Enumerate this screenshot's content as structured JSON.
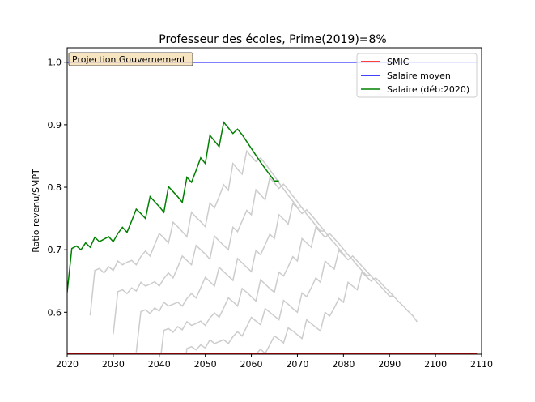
{
  "chart_data": {
    "type": "line",
    "title": "Professeur des écoles, Prime(2019)=8%",
    "xlabel": "",
    "ylabel": "Ratio revenu/SMPT",
    "xlim": [
      2020,
      2110
    ],
    "ylim": [
      0.533,
      1.023
    ],
    "xticks": [
      2020,
      2030,
      2040,
      2050,
      2060,
      2070,
      2080,
      2090,
      2100,
      2110
    ],
    "yticks": [
      0.6,
      0.7,
      0.8,
      0.9,
      1.0
    ],
    "grid": false,
    "legend_position": "top-right",
    "annotation": "Projection Gouvernement",
    "colors": {
      "smic": "#ff0000",
      "salaire_moyen": "#0000ff",
      "salaire_deb2020": "#008000",
      "other_careers": "#cccccc"
    },
    "series": [
      {
        "name": "SMIC",
        "x": [
          2020,
          2109
        ],
        "y": [
          0.534,
          0.534
        ]
      },
      {
        "name": "Salaire moyen",
        "x": [
          2020,
          2109
        ],
        "y": [
          1.0,
          1.0
        ]
      },
      {
        "name": "Salaire (déb:2020)",
        "x": [
          2020,
          2021,
          2022,
          2023,
          2024,
          2025,
          2026,
          2027,
          2028,
          2029,
          2030,
          2031,
          2032,
          2033,
          2034,
          2035,
          2036,
          2037,
          2038,
          2039,
          2040,
          2041,
          2042,
          2043,
          2044,
          2045,
          2046,
          2047,
          2048,
          2049,
          2050,
          2051,
          2052,
          2053,
          2054,
          2055,
          2056,
          2057,
          2058,
          2059,
          2060,
          2061,
          2062,
          2063,
          2064,
          2065,
          2066
        ],
        "y": [
          0.632,
          0.702,
          0.706,
          0.7,
          0.711,
          0.704,
          0.72,
          0.713,
          0.717,
          0.721,
          0.713,
          0.726,
          0.736,
          0.728,
          0.746,
          0.765,
          0.758,
          0.75,
          0.785,
          0.777,
          0.769,
          0.76,
          0.801,
          0.793,
          0.785,
          0.776,
          0.816,
          0.808,
          0.827,
          0.847,
          0.838,
          0.883,
          0.874,
          0.865,
          0.904,
          0.895,
          0.886,
          0.893,
          0.884,
          0.873,
          0.862,
          0.851,
          0.84,
          0.83,
          0.82,
          0.81,
          0.81
        ]
      }
    ],
    "background_careers": [
      {
        "start": 2025,
        "x": [
          2025,
          2026,
          2027,
          2028,
          2029,
          2030,
          2031,
          2032,
          2033,
          2034,
          2035,
          2036,
          2037,
          2038,
          2039,
          2040,
          2041,
          2042,
          2043,
          2044,
          2045,
          2046,
          2047,
          2048,
          2049,
          2050,
          2051,
          2052,
          2053,
          2054,
          2055,
          2056,
          2057,
          2058,
          2059,
          2060,
          2061,
          2062,
          2063,
          2064,
          2065,
          2066,
          2067,
          2068,
          2069,
          2070,
          2071
        ],
        "y": [
          0.595,
          0.667,
          0.67,
          0.663,
          0.673,
          0.667,
          0.682,
          0.676,
          0.68,
          0.683,
          0.676,
          0.689,
          0.698,
          0.69,
          0.708,
          0.726,
          0.719,
          0.711,
          0.744,
          0.737,
          0.729,
          0.721,
          0.76,
          0.752,
          0.745,
          0.737,
          0.775,
          0.767,
          0.785,
          0.804,
          0.795,
          0.838,
          0.829,
          0.821,
          0.858,
          0.849,
          0.841,
          0.847,
          0.838,
          0.828,
          0.818,
          0.807,
          0.797,
          0.787,
          0.778,
          0.768,
          0.768
        ]
      },
      {
        "start": 2030,
        "x": [
          2030,
          2031,
          2032,
          2033,
          2034,
          2035,
          2036,
          2037,
          2038,
          2039,
          2040,
          2041,
          2042,
          2043,
          2044,
          2045,
          2046,
          2047,
          2048,
          2049,
          2050,
          2051,
          2052,
          2053,
          2054,
          2055,
          2056,
          2057,
          2058,
          2059,
          2060,
          2061,
          2062,
          2063,
          2064,
          2065,
          2066,
          2067,
          2068,
          2069,
          2070,
          2071,
          2072,
          2073,
          2074,
          2075,
          2076
        ],
        "y": [
          0.565,
          0.633,
          0.636,
          0.63,
          0.639,
          0.634,
          0.648,
          0.642,
          0.645,
          0.649,
          0.642,
          0.654,
          0.663,
          0.655,
          0.672,
          0.69,
          0.683,
          0.676,
          0.707,
          0.7,
          0.693,
          0.685,
          0.722,
          0.714,
          0.707,
          0.7,
          0.736,
          0.729,
          0.746,
          0.763,
          0.756,
          0.796,
          0.788,
          0.78,
          0.815,
          0.807,
          0.798,
          0.805,
          0.796,
          0.786,
          0.777,
          0.767,
          0.757,
          0.748,
          0.739,
          0.73,
          0.73
        ]
      },
      {
        "start": 2035,
        "x": [
          2035,
          2036,
          2037,
          2038,
          2039,
          2040,
          2041,
          2042,
          2043,
          2044,
          2045,
          2046,
          2047,
          2048,
          2049,
          2050,
          2051,
          2052,
          2053,
          2054,
          2055,
          2056,
          2057,
          2058,
          2059,
          2060,
          2061,
          2062,
          2063,
          2064,
          2065,
          2066,
          2067,
          2068,
          2069,
          2070,
          2071,
          2072,
          2073,
          2074,
          2075,
          2076,
          2077,
          2078,
          2079,
          2080,
          2081
        ],
        "y": [
          0.536,
          0.601,
          0.604,
          0.598,
          0.607,
          0.602,
          0.616,
          0.61,
          0.613,
          0.616,
          0.61,
          0.622,
          0.63,
          0.623,
          0.639,
          0.656,
          0.649,
          0.642,
          0.672,
          0.665,
          0.658,
          0.651,
          0.686,
          0.679,
          0.672,
          0.665,
          0.699,
          0.692,
          0.708,
          0.725,
          0.718,
          0.756,
          0.749,
          0.741,
          0.774,
          0.767,
          0.758,
          0.764,
          0.756,
          0.747,
          0.738,
          0.729,
          0.719,
          0.711,
          0.702,
          0.693,
          0.693
        ]
      },
      {
        "start": 2040,
        "x": [
          2040,
          2041,
          2042,
          2043,
          2044,
          2045,
          2046,
          2047,
          2048,
          2049,
          2050,
          2051,
          2052,
          2053,
          2054,
          2055,
          2056,
          2057,
          2058,
          2059,
          2060,
          2061,
          2062,
          2063,
          2064,
          2065,
          2066,
          2067,
          2068,
          2069,
          2070,
          2071,
          2072,
          2073,
          2074,
          2075,
          2076,
          2077,
          2078,
          2079,
          2080,
          2081,
          2082,
          2083,
          2084,
          2085,
          2086
        ],
        "y": [
          0.509,
          0.571,
          0.574,
          0.568,
          0.577,
          0.572,
          0.585,
          0.579,
          0.582,
          0.586,
          0.579,
          0.591,
          0.599,
          0.592,
          0.607,
          0.623,
          0.617,
          0.61,
          0.638,
          0.632,
          0.625,
          0.618,
          0.652,
          0.645,
          0.638,
          0.632,
          0.664,
          0.658,
          0.673,
          0.689,
          0.682,
          0.718,
          0.711,
          0.704,
          0.736,
          0.728,
          0.72,
          0.726,
          0.718,
          0.71,
          0.701,
          0.692,
          0.684,
          0.675,
          0.667,
          0.659,
          0.659
        ]
      },
      {
        "start": 2045,
        "x": [
          2045,
          2046,
          2047,
          2048,
          2049,
          2050,
          2051,
          2052,
          2053,
          2054,
          2055,
          2056,
          2057,
          2058,
          2059,
          2060,
          2061,
          2062,
          2063,
          2064,
          2065,
          2066,
          2067,
          2068,
          2069,
          2070,
          2071,
          2072,
          2073,
          2074,
          2075,
          2076,
          2077,
          2078,
          2079,
          2080,
          2081,
          2082,
          2083,
          2084,
          2085,
          2086,
          2087,
          2088,
          2089,
          2090,
          2091
        ],
        "y": [
          0.484,
          0.542,
          0.545,
          0.54,
          0.548,
          0.543,
          0.556,
          0.55,
          0.553,
          0.556,
          0.55,
          0.561,
          0.569,
          0.562,
          0.577,
          0.592,
          0.586,
          0.58,
          0.606,
          0.6,
          0.594,
          0.588,
          0.619,
          0.613,
          0.606,
          0.6,
          0.631,
          0.625,
          0.639,
          0.655,
          0.648,
          0.682,
          0.675,
          0.669,
          0.699,
          0.692,
          0.684,
          0.69,
          0.682,
          0.674,
          0.666,
          0.658,
          0.65,
          0.642,
          0.634,
          0.626,
          0.626
        ]
      },
      {
        "start": 2050,
        "x": [
          2050,
          2051,
          2052,
          2053,
          2054,
          2055,
          2056,
          2057,
          2058,
          2059,
          2060,
          2061,
          2062,
          2063,
          2064,
          2065,
          2066,
          2067,
          2068,
          2069,
          2070,
          2071,
          2072,
          2073,
          2074,
          2075,
          2076,
          2077,
          2078,
          2079,
          2080,
          2081,
          2082,
          2083,
          2084,
          2085,
          2086,
          2087,
          2088,
          2089,
          2090,
          2091,
          2092,
          2093,
          2094,
          2095,
          2096
        ],
        "y": [
          0.46,
          0.515,
          0.518,
          0.513,
          0.521,
          0.516,
          0.528,
          0.523,
          0.525,
          0.528,
          0.523,
          0.533,
          0.541,
          0.534,
          0.548,
          0.562,
          0.557,
          0.551,
          0.575,
          0.57,
          0.564,
          0.558,
          0.588,
          0.582,
          0.576,
          0.57,
          0.6,
          0.594,
          0.607,
          0.622,
          0.616,
          0.648,
          0.642,
          0.636,
          0.664,
          0.657,
          0.65,
          0.655,
          0.648,
          0.64,
          0.633,
          0.625,
          0.617,
          0.61,
          0.602,
          0.595,
          0.585
        ]
      }
    ]
  }
}
